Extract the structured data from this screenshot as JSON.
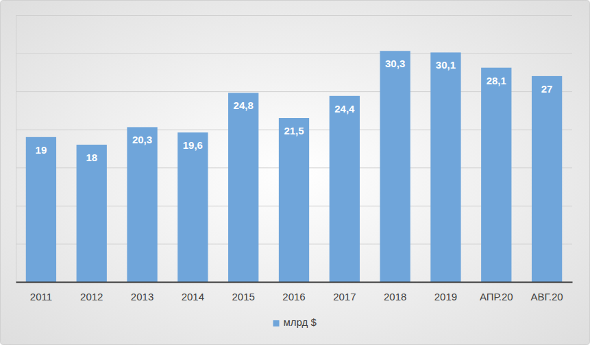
{
  "chart_data": {
    "type": "bar",
    "categories": [
      "2011",
      "2012",
      "2013",
      "2014",
      "2015",
      "2016",
      "2017",
      "2018",
      "2019",
      "АПР.20",
      "АВГ.20"
    ],
    "series": [
      {
        "name": "млрд $",
        "color": "#6fa5da",
        "values": [
          19,
          18,
          20.3,
          19.6,
          24.8,
          21.5,
          24.4,
          30.3,
          30.1,
          28.1,
          27
        ],
        "value_labels": [
          "19",
          "18",
          "20,3",
          "19,6",
          "24,8",
          "21,5",
          "24,4",
          "30,3",
          "30,1",
          "28,1",
          "27"
        ]
      }
    ],
    "ylim": [
      0,
      35
    ],
    "yticks": [
      0,
      5,
      10,
      15,
      20,
      25,
      30,
      35
    ],
    "grid": true,
    "data_labels": true,
    "tick_labels": "x",
    "legend": "bottom"
  }
}
